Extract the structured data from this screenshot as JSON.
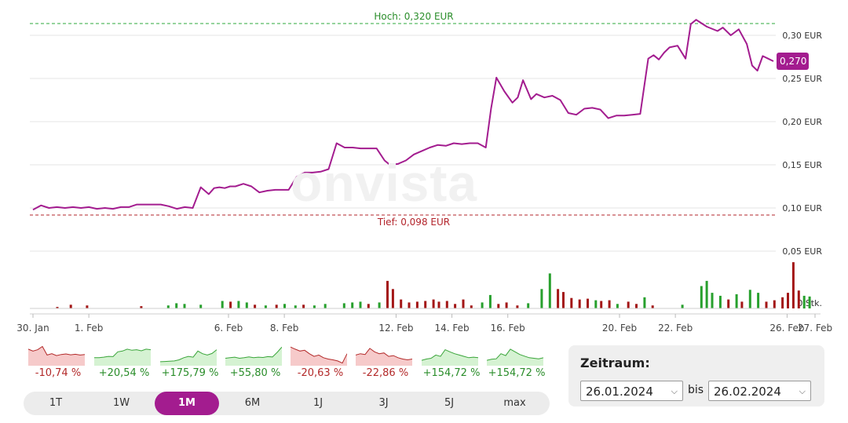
{
  "chart_data": {
    "type": "line",
    "watermark": "onvista",
    "currency": "EUR",
    "price_ticks": [
      {
        "value": 0.3,
        "label": "0,30 EUR"
      },
      {
        "value": 0.25,
        "label": "0,25 EUR"
      },
      {
        "value": 0.2,
        "label": "0,20 EUR"
      },
      {
        "value": 0.15,
        "label": "0,15 EUR"
      },
      {
        "value": 0.1,
        "label": "0,10 EUR"
      },
      {
        "value": 0.05,
        "label": "0,05 EUR"
      }
    ],
    "volume_tick_label": "0 Stk.",
    "ylim": [
      0.05,
      0.32
    ],
    "high": {
      "value": 0.32,
      "label": "Hoch: 0,320 EUR"
    },
    "low": {
      "value": 0.098,
      "label": "Tief: 0,098 EUR"
    },
    "last_price": {
      "value": 0.27,
      "label": "0,270"
    },
    "x_ticks": [
      {
        "day": 0,
        "label": "30. Jan"
      },
      {
        "day": 2,
        "label": "1. Feb"
      },
      {
        "day": 7,
        "label": "6. Feb"
      },
      {
        "day": 9,
        "label": "8. Feb"
      },
      {
        "day": 13,
        "label": "12. Feb"
      },
      {
        "day": 15,
        "label": "14. Feb"
      },
      {
        "day": 17,
        "label": "16. Feb"
      },
      {
        "day": 21,
        "label": "20. Feb"
      },
      {
        "day": 23,
        "label": "22. Feb"
      },
      {
        "day": 27,
        "label": "26. Feb"
      },
      {
        "day": 28,
        "label": "27. Feb"
      }
    ],
    "x_range_days": [
      0,
      28
    ],
    "price_series": {
      "color": "#a31c8f",
      "x": [
        0.0,
        0.3,
        0.6,
        0.9,
        1.2,
        1.5,
        1.8,
        2.1,
        2.4,
        2.7,
        3.0,
        3.3,
        3.6,
        3.9,
        4.2,
        4.5,
        4.8,
        5.1,
        5.4,
        5.7,
        6.0,
        6.3,
        6.6,
        6.8,
        7.0,
        7.2,
        7.4,
        7.6,
        7.9,
        8.2,
        8.5,
        8.8,
        9.1,
        9.3,
        9.6,
        9.9,
        10.2,
        10.5,
        10.8,
        11.1,
        11.4,
        11.7,
        12.0,
        12.3,
        12.6,
        12.9,
        13.2,
        13.4,
        13.7,
        14.0,
        14.3,
        14.6,
        14.9,
        15.2,
        15.5,
        15.8,
        16.1,
        16.4,
        16.7,
        17.0,
        17.2,
        17.4,
        17.7,
        18.0,
        18.2,
        18.4,
        18.7,
        18.9,
        19.2,
        19.5,
        19.8,
        20.1,
        20.4,
        20.7,
        21.0,
        21.3,
        21.6,
        21.9,
        22.2,
        22.5,
        22.8,
        23.1,
        23.3,
        23.5,
        23.7,
        23.9,
        24.2,
        24.5,
        24.7,
        24.9,
        25.3,
        25.7,
        25.9,
        26.2,
        26.5,
        26.8,
        27.0,
        27.2,
        27.4,
        27.6,
        27.8
      ],
      "values": [
        0.098,
        0.103,
        0.1,
        0.101,
        0.1,
        0.101,
        0.1,
        0.101,
        0.099,
        0.1,
        0.099,
        0.101,
        0.101,
        0.104,
        0.104,
        0.104,
        0.104,
        0.102,
        0.099,
        0.101,
        0.1,
        0.124,
        0.116,
        0.123,
        0.124,
        0.123,
        0.125,
        0.125,
        0.128,
        0.125,
        0.118,
        0.12,
        0.121,
        0.121,
        0.121,
        0.136,
        0.141,
        0.141,
        0.142,
        0.145,
        0.175,
        0.17,
        0.17,
        0.169,
        0.169,
        0.169,
        0.155,
        0.15,
        0.151,
        0.155,
        0.162,
        0.166,
        0.17,
        0.173,
        0.172,
        0.175,
        0.174,
        0.175,
        0.175,
        0.17,
        0.215,
        0.251,
        0.235,
        0.222,
        0.228,
        0.248,
        0.226,
        0.232,
        0.228,
        0.23,
        0.225,
        0.21,
        0.208,
        0.215,
        0.216,
        0.214,
        0.204,
        0.207,
        0.207,
        0.208,
        0.209,
        0.273,
        0.277,
        0.272,
        0.28,
        0.286,
        0.288,
        0.273,
        0.313,
        0.318,
        0.31,
        0.305,
        0.309,
        0.3,
        0.307,
        0.29,
        0.265,
        0.259,
        0.276,
        0.273,
        0.27
      ]
    },
    "volume_bars": [
      {
        "day": 0.9,
        "rel": 0.02,
        "color": "red"
      },
      {
        "day": 1.4,
        "rel": 0.05,
        "color": "red"
      },
      {
        "day": 2.0,
        "rel": 0.04,
        "color": "red"
      },
      {
        "day": 4.0,
        "rel": 0.03,
        "color": "red"
      },
      {
        "day": 5.0,
        "rel": 0.04,
        "color": "green"
      },
      {
        "day": 5.3,
        "rel": 0.07,
        "color": "green"
      },
      {
        "day": 5.6,
        "rel": 0.06,
        "color": "green"
      },
      {
        "day": 6.2,
        "rel": 0.05,
        "color": "green"
      },
      {
        "day": 7.0,
        "rel": 0.1,
        "color": "green"
      },
      {
        "day": 7.3,
        "rel": 0.09,
        "color": "red"
      },
      {
        "day": 7.6,
        "rel": 0.1,
        "color": "green"
      },
      {
        "day": 7.9,
        "rel": 0.08,
        "color": "green"
      },
      {
        "day": 8.2,
        "rel": 0.05,
        "color": "red"
      },
      {
        "day": 8.6,
        "rel": 0.04,
        "color": "green"
      },
      {
        "day": 9.0,
        "rel": 0.05,
        "color": "red"
      },
      {
        "day": 9.3,
        "rel": 0.06,
        "color": "green"
      },
      {
        "day": 9.7,
        "rel": 0.04,
        "color": "green"
      },
      {
        "day": 10.0,
        "rel": 0.05,
        "color": "red"
      },
      {
        "day": 10.4,
        "rel": 0.04,
        "color": "green"
      },
      {
        "day": 10.8,
        "rel": 0.06,
        "color": "green"
      },
      {
        "day": 11.5,
        "rel": 0.07,
        "color": "green"
      },
      {
        "day": 11.8,
        "rel": 0.08,
        "color": "green"
      },
      {
        "day": 12.1,
        "rel": 0.09,
        "color": "green"
      },
      {
        "day": 12.4,
        "rel": 0.06,
        "color": "red"
      },
      {
        "day": 12.8,
        "rel": 0.08,
        "color": "green"
      },
      {
        "day": 13.1,
        "rel": 0.37,
        "color": "red"
      },
      {
        "day": 13.3,
        "rel": 0.26,
        "color": "red"
      },
      {
        "day": 13.6,
        "rel": 0.12,
        "color": "red"
      },
      {
        "day": 13.9,
        "rel": 0.08,
        "color": "red"
      },
      {
        "day": 14.2,
        "rel": 0.09,
        "color": "red"
      },
      {
        "day": 14.5,
        "rel": 0.1,
        "color": "red"
      },
      {
        "day": 14.8,
        "rel": 0.12,
        "color": "red"
      },
      {
        "day": 15.0,
        "rel": 0.09,
        "color": "red"
      },
      {
        "day": 15.3,
        "rel": 0.1,
        "color": "red"
      },
      {
        "day": 15.6,
        "rel": 0.06,
        "color": "red"
      },
      {
        "day": 15.9,
        "rel": 0.12,
        "color": "red"
      },
      {
        "day": 16.2,
        "rel": 0.04,
        "color": "red"
      },
      {
        "day": 16.6,
        "rel": 0.08,
        "color": "green"
      },
      {
        "day": 16.9,
        "rel": 0.18,
        "color": "green"
      },
      {
        "day": 17.2,
        "rel": 0.06,
        "color": "red"
      },
      {
        "day": 17.5,
        "rel": 0.08,
        "color": "red"
      },
      {
        "day": 17.9,
        "rel": 0.04,
        "color": "red"
      },
      {
        "day": 18.3,
        "rel": 0.07,
        "color": "green"
      },
      {
        "day": 18.8,
        "rel": 0.26,
        "color": "green"
      },
      {
        "day": 19.1,
        "rel": 0.47,
        "color": "green"
      },
      {
        "day": 19.4,
        "rel": 0.26,
        "color": "red"
      },
      {
        "day": 19.6,
        "rel": 0.22,
        "color": "red"
      },
      {
        "day": 19.9,
        "rel": 0.14,
        "color": "red"
      },
      {
        "day": 20.2,
        "rel": 0.12,
        "color": "red"
      },
      {
        "day": 20.5,
        "rel": 0.13,
        "color": "red"
      },
      {
        "day": 20.8,
        "rel": 0.11,
        "color": "green"
      },
      {
        "day": 21.0,
        "rel": 0.1,
        "color": "red"
      },
      {
        "day": 21.3,
        "rel": 0.11,
        "color": "red"
      },
      {
        "day": 21.6,
        "rel": 0.06,
        "color": "green"
      },
      {
        "day": 22.0,
        "rel": 0.09,
        "color": "red"
      },
      {
        "day": 22.3,
        "rel": 0.06,
        "color": "red"
      },
      {
        "day": 22.6,
        "rel": 0.15,
        "color": "green"
      },
      {
        "day": 22.9,
        "rel": 0.04,
        "color": "red"
      },
      {
        "day": 24.0,
        "rel": 0.05,
        "color": "green"
      },
      {
        "day": 24.7,
        "rel": 0.3,
        "color": "green"
      },
      {
        "day": 24.9,
        "rel": 0.37,
        "color": "green"
      },
      {
        "day": 25.1,
        "rel": 0.21,
        "color": "green"
      },
      {
        "day": 25.4,
        "rel": 0.17,
        "color": "green"
      },
      {
        "day": 25.7,
        "rel": 0.12,
        "color": "red"
      },
      {
        "day": 26.0,
        "rel": 0.19,
        "color": "green"
      },
      {
        "day": 26.2,
        "rel": 0.09,
        "color": "red"
      },
      {
        "day": 26.5,
        "rel": 0.25,
        "color": "green"
      },
      {
        "day": 26.8,
        "rel": 0.21,
        "color": "green"
      },
      {
        "day": 27.1,
        "rel": 0.09,
        "color": "red"
      },
      {
        "day": 27.4,
        "rel": 0.11,
        "color": "red"
      },
      {
        "day": 27.7,
        "rel": 0.15,
        "color": "red"
      },
      {
        "day": 27.9,
        "rel": 0.21,
        "color": "red"
      },
      {
        "day": 28.1,
        "rel": 0.62,
        "color": "red"
      },
      {
        "day": 28.3,
        "rel": 0.24,
        "color": "red"
      },
      {
        "day": 28.5,
        "rel": 0.17,
        "color": "green"
      },
      {
        "day": 28.7,
        "rel": 0.16,
        "color": "green"
      }
    ],
    "grid": true
  },
  "mini_charts": [
    {
      "change": "-10,74 %",
      "trend": "down",
      "values": [
        0.62,
        0.55,
        0.6,
        0.72,
        0.4,
        0.45,
        0.38,
        0.42,
        0.44,
        0.41,
        0.43,
        0.4,
        0.42
      ]
    },
    {
      "change": "+20,54 %",
      "trend": "up",
      "values": [
        0.3,
        0.3,
        0.32,
        0.35,
        0.34,
        0.52,
        0.55,
        0.62,
        0.58,
        0.6,
        0.56,
        0.62,
        0.6
      ]
    },
    {
      "change": "+175,79 %",
      "trend": "up",
      "values": [
        0.15,
        0.16,
        0.17,
        0.18,
        0.22,
        0.3,
        0.35,
        0.32,
        0.55,
        0.45,
        0.4,
        0.46,
        0.6
      ]
    },
    {
      "change": "+55,80 %",
      "trend": "up",
      "values": [
        0.28,
        0.3,
        0.32,
        0.28,
        0.3,
        0.33,
        0.3,
        0.32,
        0.31,
        0.34,
        0.33,
        0.5,
        0.7
      ]
    },
    {
      "change": "-20,63 %",
      "trend": "down",
      "values": [
        0.7,
        0.62,
        0.55,
        0.58,
        0.45,
        0.35,
        0.4,
        0.3,
        0.25,
        0.22,
        0.18,
        0.1,
        0.45
      ]
    },
    {
      "change": "-22,86 %",
      "trend": "down",
      "values": [
        0.4,
        0.45,
        0.42,
        0.65,
        0.52,
        0.45,
        0.48,
        0.35,
        0.38,
        0.3,
        0.25,
        0.22,
        0.25
      ]
    },
    {
      "change": "+154,72 %",
      "trend": "up",
      "values": [
        0.2,
        0.25,
        0.28,
        0.4,
        0.35,
        0.6,
        0.52,
        0.45,
        0.4,
        0.35,
        0.3,
        0.32,
        0.3
      ]
    },
    {
      "change": "+154,72 %",
      "trend": "up",
      "values": [
        0.2,
        0.24,
        0.26,
        0.45,
        0.38,
        0.62,
        0.52,
        0.42,
        0.36,
        0.3,
        0.28,
        0.26,
        0.3
      ]
    }
  ],
  "periods": [
    {
      "label": "1T",
      "active": false
    },
    {
      "label": "1W",
      "active": false
    },
    {
      "label": "1M",
      "active": true
    },
    {
      "label": "6M",
      "active": false
    },
    {
      "label": "1J",
      "active": false
    },
    {
      "label": "3J",
      "active": false
    },
    {
      "label": "5J",
      "active": false
    },
    {
      "label": "max",
      "active": false
    }
  ],
  "zeitraum": {
    "title": "Zeitraum:",
    "from": "26.01.2024",
    "separator": "bis",
    "to": "26.02.2024"
  },
  "colors": {
    "line": "#a31c8f",
    "high": "#2eaa3c",
    "low": "#b3242b",
    "volume_up": "#27a02d",
    "volume_down": "#a31616",
    "mini_up_fill": "#d5f2d2",
    "mini_up_line": "#3aa53a",
    "mini_down_fill": "#f6caca",
    "mini_down_line": "#b32a2a",
    "active_period": "#a31c8f"
  }
}
